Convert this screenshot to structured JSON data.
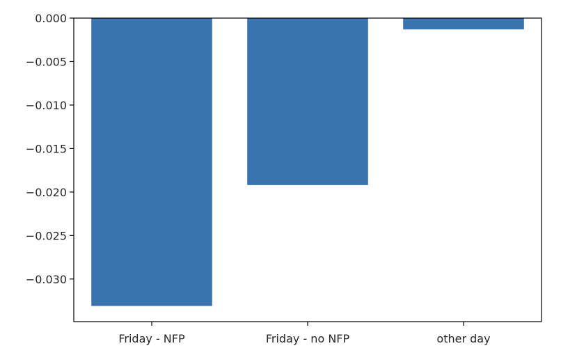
{
  "chart_data": {
    "type": "bar",
    "title": "",
    "xlabel": "",
    "ylabel": "",
    "categories": [
      "Friday - NFP",
      "Friday - no NFP",
      "other day"
    ],
    "values": [
      -0.0331,
      -0.0192,
      -0.0013
    ],
    "ylim": [
      -0.0349,
      0.0
    ],
    "yticks": [
      0.0,
      -0.005,
      -0.01,
      -0.015,
      -0.02,
      -0.025,
      -0.03
    ],
    "ytick_labels": [
      "0.000",
      "−0.005",
      "−0.010",
      "−0.015",
      "−0.020",
      "−0.025",
      "−0.030"
    ],
    "bar_color": "#3a74ae",
    "grid": false,
    "legend": "none"
  }
}
